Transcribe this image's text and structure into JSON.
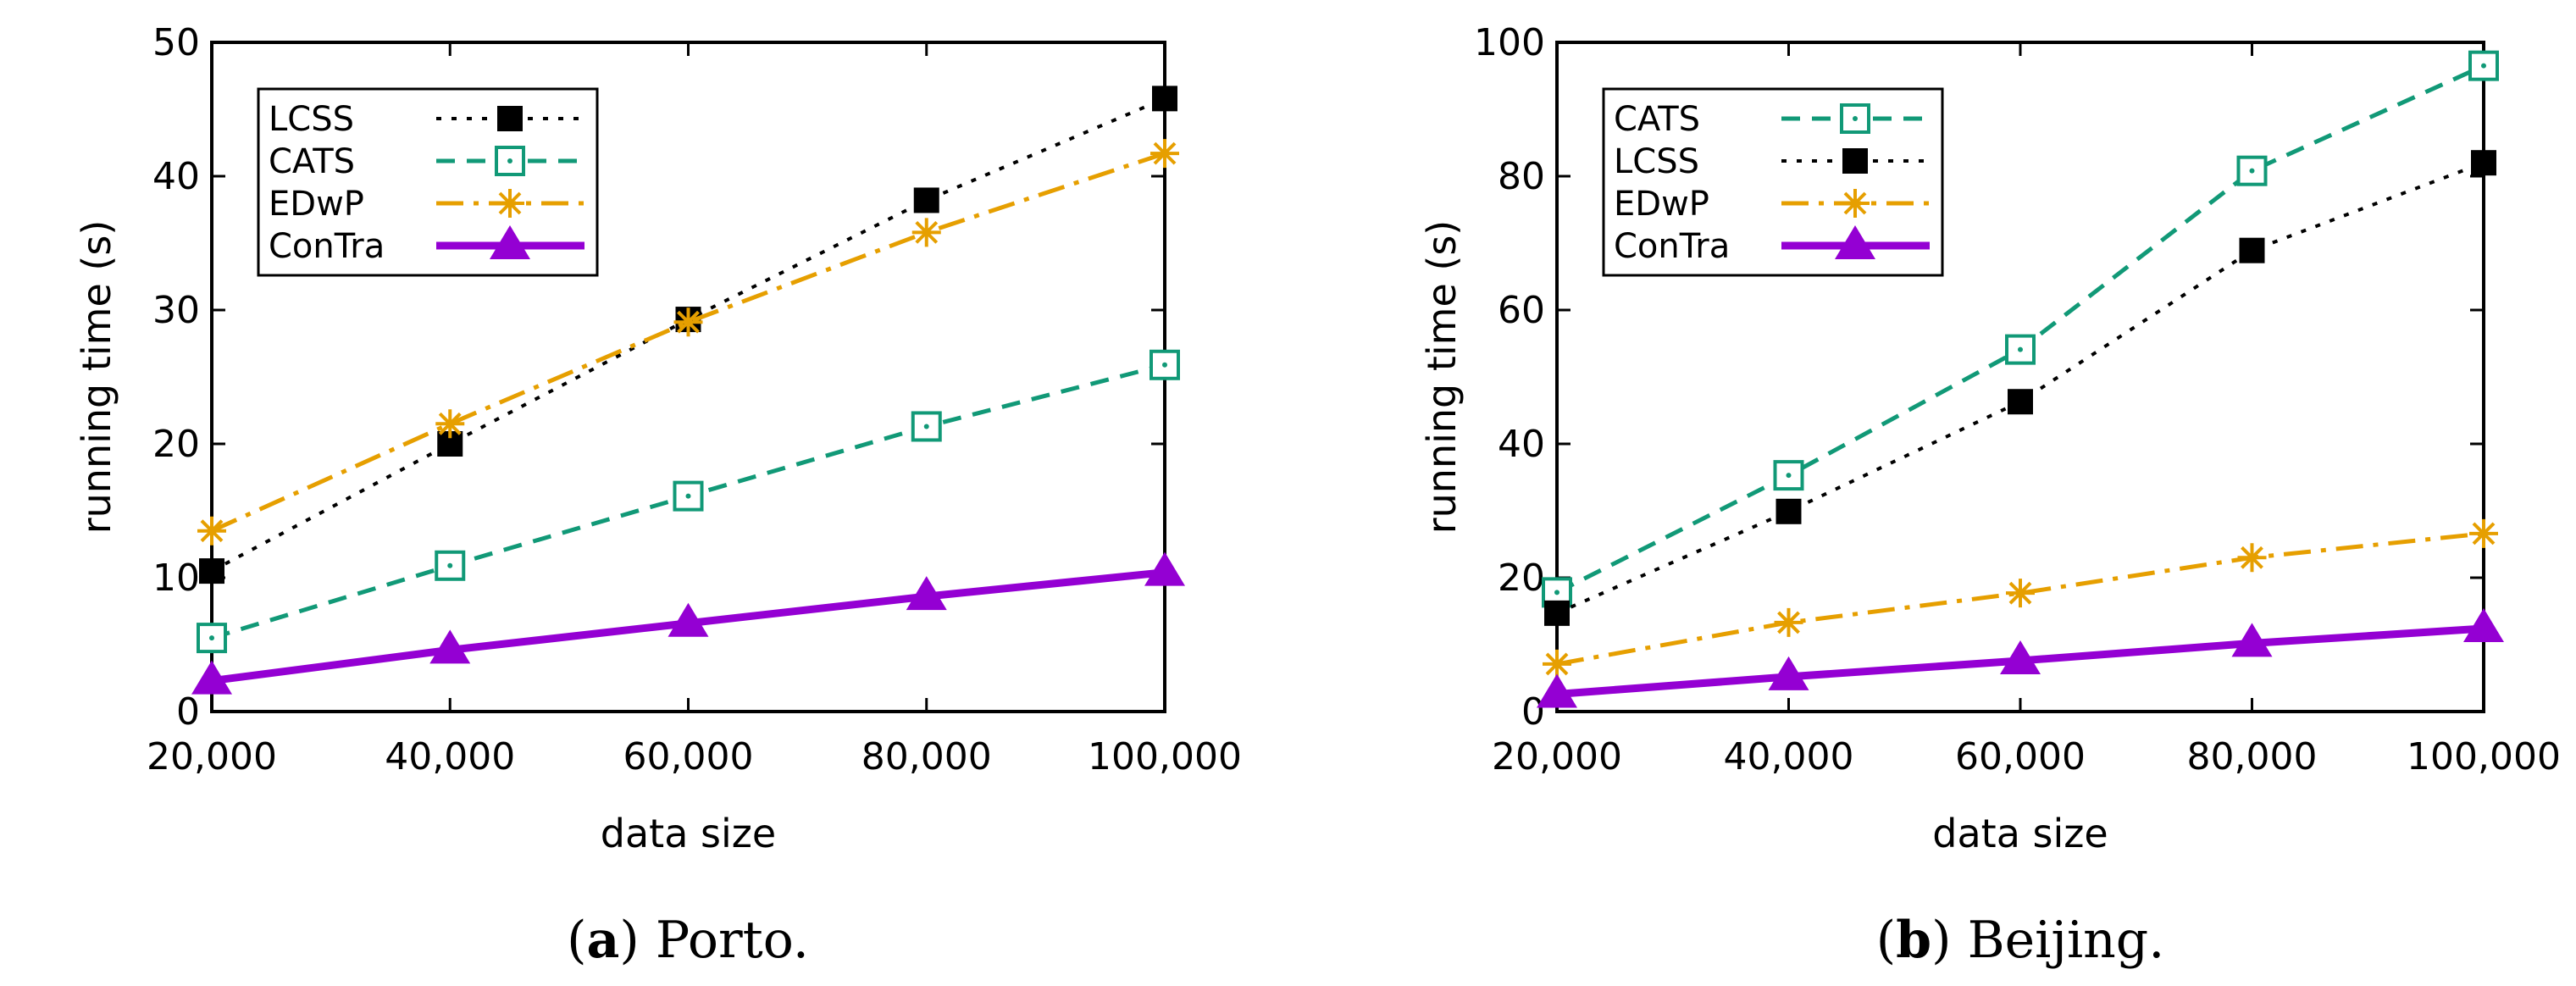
{
  "chart_data": [
    {
      "type": "line",
      "caption_letter": "a",
      "caption_text": "Porto.",
      "xlabel": "data size",
      "ylabel": "running time (s)",
      "x": [
        20000,
        40000,
        60000,
        80000,
        100000
      ],
      "x_tick_labels": [
        "20,000",
        "40,000",
        "60,000",
        "80,000",
        "100,000"
      ],
      "ylim": [
        0,
        50
      ],
      "y_ticks": [
        0,
        10,
        20,
        30,
        40,
        50
      ],
      "legend_position": "top-left",
      "series": [
        {
          "name": "LCSS",
          "style": "dotted-black-square",
          "color": "#000000",
          "values": [
            10.5,
            20.0,
            29.3,
            38.2,
            45.8
          ]
        },
        {
          "name": "CATS",
          "style": "dashed-green-open-square",
          "color": "#119977",
          "values": [
            5.5,
            10.9,
            16.1,
            21.3,
            25.9
          ]
        },
        {
          "name": "EDwP",
          "style": "dashdot-orange-star",
          "color": "#e69f00",
          "values": [
            13.5,
            21.5,
            29.1,
            35.8,
            41.7
          ]
        },
        {
          "name": "ConTra",
          "style": "solid-purple-triangle",
          "color": "#9400d3",
          "values": [
            2.3,
            4.6,
            6.6,
            8.6,
            10.4
          ]
        }
      ]
    },
    {
      "type": "line",
      "caption_letter": "b",
      "caption_text": "Beijing.",
      "xlabel": "data size",
      "ylabel": "running time (s)",
      "x": [
        20000,
        40000,
        60000,
        80000,
        100000
      ],
      "x_tick_labels": [
        "20,000",
        "40,000",
        "60,000",
        "80,000",
        "100,000"
      ],
      "ylim": [
        0,
        100
      ],
      "y_ticks": [
        0,
        20,
        40,
        60,
        80,
        100
      ],
      "legend_position": "top-left",
      "series": [
        {
          "name": "CATS",
          "style": "dashed-green-open-square",
          "color": "#119977",
          "values": [
            17.8,
            35.3,
            54.1,
            80.8,
            96.5
          ]
        },
        {
          "name": "LCSS",
          "style": "dotted-black-square",
          "color": "#000000",
          "values": [
            14.7,
            29.9,
            46.3,
            68.9,
            82.0
          ]
        },
        {
          "name": "EDwP",
          "style": "dashdot-orange-star",
          "color": "#e69f00",
          "values": [
            7.1,
            13.3,
            17.7,
            23.0,
            26.6
          ]
        },
        {
          "name": "ConTra",
          "style": "solid-purple-triangle",
          "color": "#9400d3",
          "values": [
            2.6,
            5.2,
            7.6,
            10.2,
            12.4
          ]
        }
      ]
    }
  ]
}
